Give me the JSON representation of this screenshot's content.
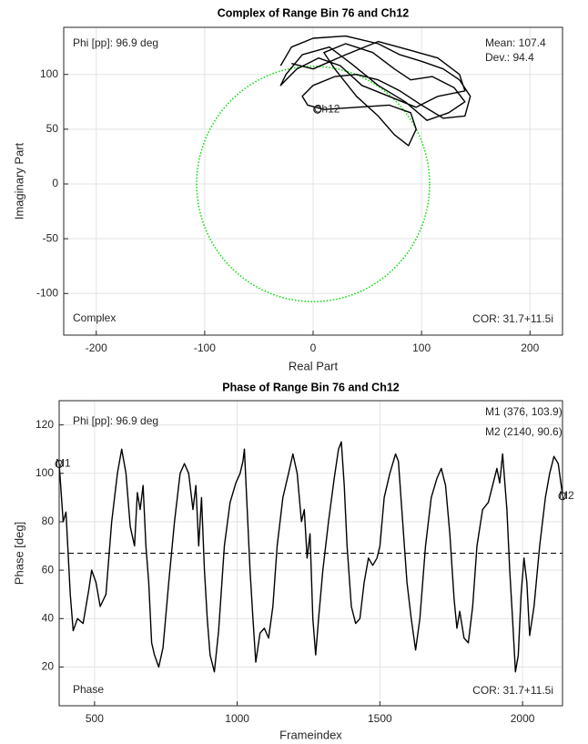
{
  "chart_data": [
    {
      "type": "line",
      "title": "Complex of Range Bin 76 and Ch12",
      "x_label": "Real Part",
      "y_label": "Imaginary Part",
      "xlim": [
        -230,
        230
      ],
      "ylim": [
        -138,
        143
      ],
      "xticks": [
        -200,
        -100,
        0,
        100,
        200
      ],
      "yticks": [
        -100,
        -50,
        0,
        50,
        100
      ],
      "grid": true,
      "series": [
        {
          "color": "#000000",
          "x": [
            -30,
            -20,
            0,
            30,
            60,
            80,
            100,
            120,
            135,
            145,
            140,
            120,
            100,
            80,
            60,
            40,
            20,
            0,
            -10,
            -5,
            10,
            40,
            70,
            90,
            95,
            88,
            75,
            60,
            40,
            20,
            10,
            30,
            55,
            75,
            90,
            110,
            130,
            140,
            125,
            105,
            85,
            60,
            35,
            15,
            -10,
            -25,
            -30,
            -15,
            5,
            25,
            45,
            70,
            95,
            115,
            140,
            135,
            115,
            90,
            60,
            30,
            0,
            -20
          ],
          "values": [
            108,
            125,
            133,
            135,
            128,
            118,
            112,
            105,
            95,
            80,
            62,
            60,
            72,
            85,
            95,
            100,
            98,
            90,
            80,
            72,
            68,
            70,
            72,
            65,
            50,
            35,
            45,
            62,
            80,
            105,
            120,
            128,
            120,
            105,
            95,
            98,
            88,
            75,
            65,
            58,
            75,
            90,
            110,
            125,
            118,
            100,
            90,
            105,
            115,
            108,
            90,
            80,
            70,
            80,
            85,
            100,
            115,
            122,
            130,
            118,
            105,
            110
          ]
        }
      ],
      "reference_circle": {
        "radius": 107.4,
        "color": "#00dd00"
      },
      "markers": [
        {
          "label": "Ch12",
          "x": 4,
          "y": 68
        }
      ],
      "annotations": [
        "Phi [pp]: 96.9 deg",
        "Mean: 107.4",
        "Dev.: 94.4",
        "Complex",
        "COR: 31.7+11.5i"
      ]
    },
    {
      "type": "line",
      "title": "Phase of Range Bin 76 and Ch12",
      "x_label": "Frameindex",
      "y_label": "Phase [deg]",
      "xlim": [
        376,
        2140
      ],
      "ylim": [
        4,
        130
      ],
      "xticks": [
        500,
        1000,
        1500,
        2000
      ],
      "yticks": [
        20,
        40,
        60,
        80,
        100,
        120
      ],
      "grid": true,
      "series": [
        {
          "color": "#000000",
          "x": [
            376,
            390,
            400,
            415,
            425,
            440,
            460,
            480,
            490,
            505,
            520,
            540,
            560,
            580,
            595,
            610,
            625,
            640,
            650,
            660,
            670,
            680,
            690,
            700,
            710,
            725,
            740,
            760,
            780,
            800,
            815,
            830,
            845,
            855,
            865,
            875,
            885,
            895,
            905,
            920,
            935,
            955,
            975,
            995,
            1010,
            1020,
            1025,
            1035,
            1045,
            1055,
            1065,
            1080,
            1095,
            1110,
            1125,
            1140,
            1160,
            1180,
            1195,
            1210,
            1225,
            1235,
            1245,
            1255,
            1265,
            1275,
            1285,
            1300,
            1320,
            1340,
            1355,
            1365,
            1375,
            1385,
            1400,
            1415,
            1430,
            1445,
            1460,
            1475,
            1490,
            1500,
            1515,
            1535,
            1555,
            1565,
            1580,
            1595,
            1610,
            1625,
            1640,
            1660,
            1680,
            1700,
            1715,
            1730,
            1745,
            1760,
            1770,
            1780,
            1795,
            1810,
            1825,
            1840,
            1860,
            1880,
            1895,
            1910,
            1920,
            1930,
            1945,
            1955,
            1965,
            1975,
            1985,
            1995,
            2005,
            2015,
            2025,
            2040,
            2060,
            2080,
            2095,
            2110,
            2125,
            2140
          ],
          "values": [
            104,
            80,
            84,
            50,
            35,
            40,
            38,
            52,
            60,
            55,
            45,
            50,
            80,
            100,
            110,
            100,
            78,
            70,
            92,
            85,
            95,
            70,
            55,
            30,
            25,
            20,
            28,
            55,
            80,
            100,
            104,
            100,
            85,
            95,
            70,
            90,
            60,
            40,
            25,
            18,
            35,
            70,
            88,
            96,
            100,
            105,
            110,
            85,
            60,
            40,
            22,
            34,
            36,
            32,
            45,
            70,
            90,
            100,
            108,
            100,
            80,
            85,
            65,
            75,
            40,
            25,
            40,
            60,
            80,
            98,
            110,
            113,
            95,
            70,
            45,
            38,
            40,
            55,
            65,
            62,
            65,
            70,
            90,
            100,
            108,
            105,
            80,
            55,
            40,
            27,
            40,
            70,
            90,
            98,
            102,
            95,
            75,
            48,
            36,
            43,
            32,
            30,
            45,
            70,
            85,
            88,
            95,
            102,
            96,
            108,
            85,
            60,
            40,
            18,
            25,
            50,
            65,
            55,
            33,
            45,
            70,
            90,
            100,
            107,
            104,
            91
          ]
        }
      ],
      "mean_line": {
        "y": 67,
        "color": "#000000"
      },
      "markers": [
        {
          "label": "M1",
          "x": 376,
          "y": 103.9
        },
        {
          "label": "M2",
          "x": 2140,
          "y": 90.6
        }
      ],
      "annotations": [
        "Phi [pp]: 96.9 deg",
        "M1 (376, 103.9)",
        "M2 (2140, 90.6)",
        "Phase",
        "COR: 31.7+11.5i"
      ]
    }
  ]
}
